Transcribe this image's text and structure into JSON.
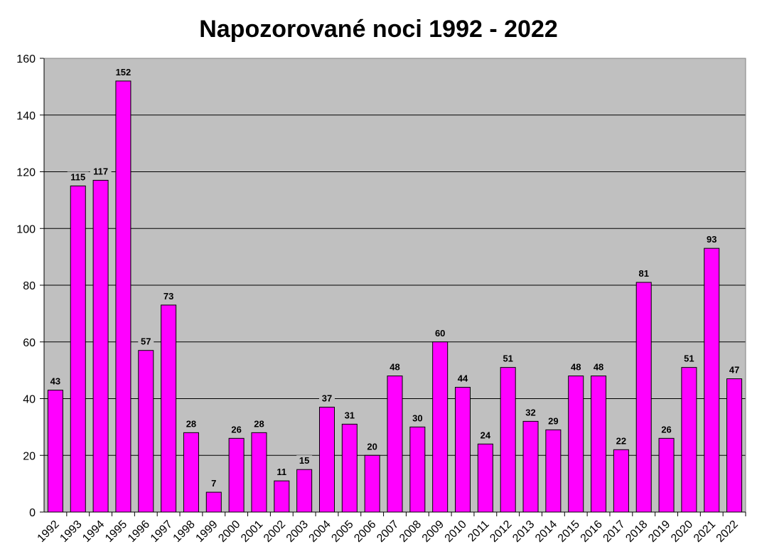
{
  "chart_data": {
    "type": "bar",
    "title": "Napozorované noci 1992 - 2022",
    "xlabel": "",
    "ylabel": "",
    "categories": [
      "1992",
      "1993",
      "1994",
      "1995",
      "1996",
      "1997",
      "1998",
      "1999",
      "2000",
      "2001",
      "2002",
      "2003",
      "2004",
      "2005",
      "2006",
      "2007",
      "2008",
      "2009",
      "2010",
      "2011",
      "2012",
      "2013",
      "2014",
      "2015",
      "2016",
      "2017",
      "2018",
      "2019",
      "2020",
      "2021",
      "2022"
    ],
    "values": [
      43,
      115,
      117,
      152,
      57,
      73,
      28,
      7,
      26,
      28,
      11,
      15,
      37,
      31,
      20,
      48,
      30,
      60,
      44,
      24,
      51,
      32,
      29,
      48,
      48,
      22,
      81,
      26,
      51,
      93,
      47
    ],
    "ylim": [
      0,
      160
    ],
    "yticks": [
      0,
      20,
      40,
      60,
      80,
      100,
      120,
      140,
      160
    ],
    "grid": true,
    "legend": "none",
    "data_labels": true
  },
  "colors": {
    "bar_fill": "#FF00FF",
    "bar_stroke": "#000000",
    "plot_background": "#C0C0C0",
    "gridline": "#000000",
    "axis": "#000000"
  }
}
